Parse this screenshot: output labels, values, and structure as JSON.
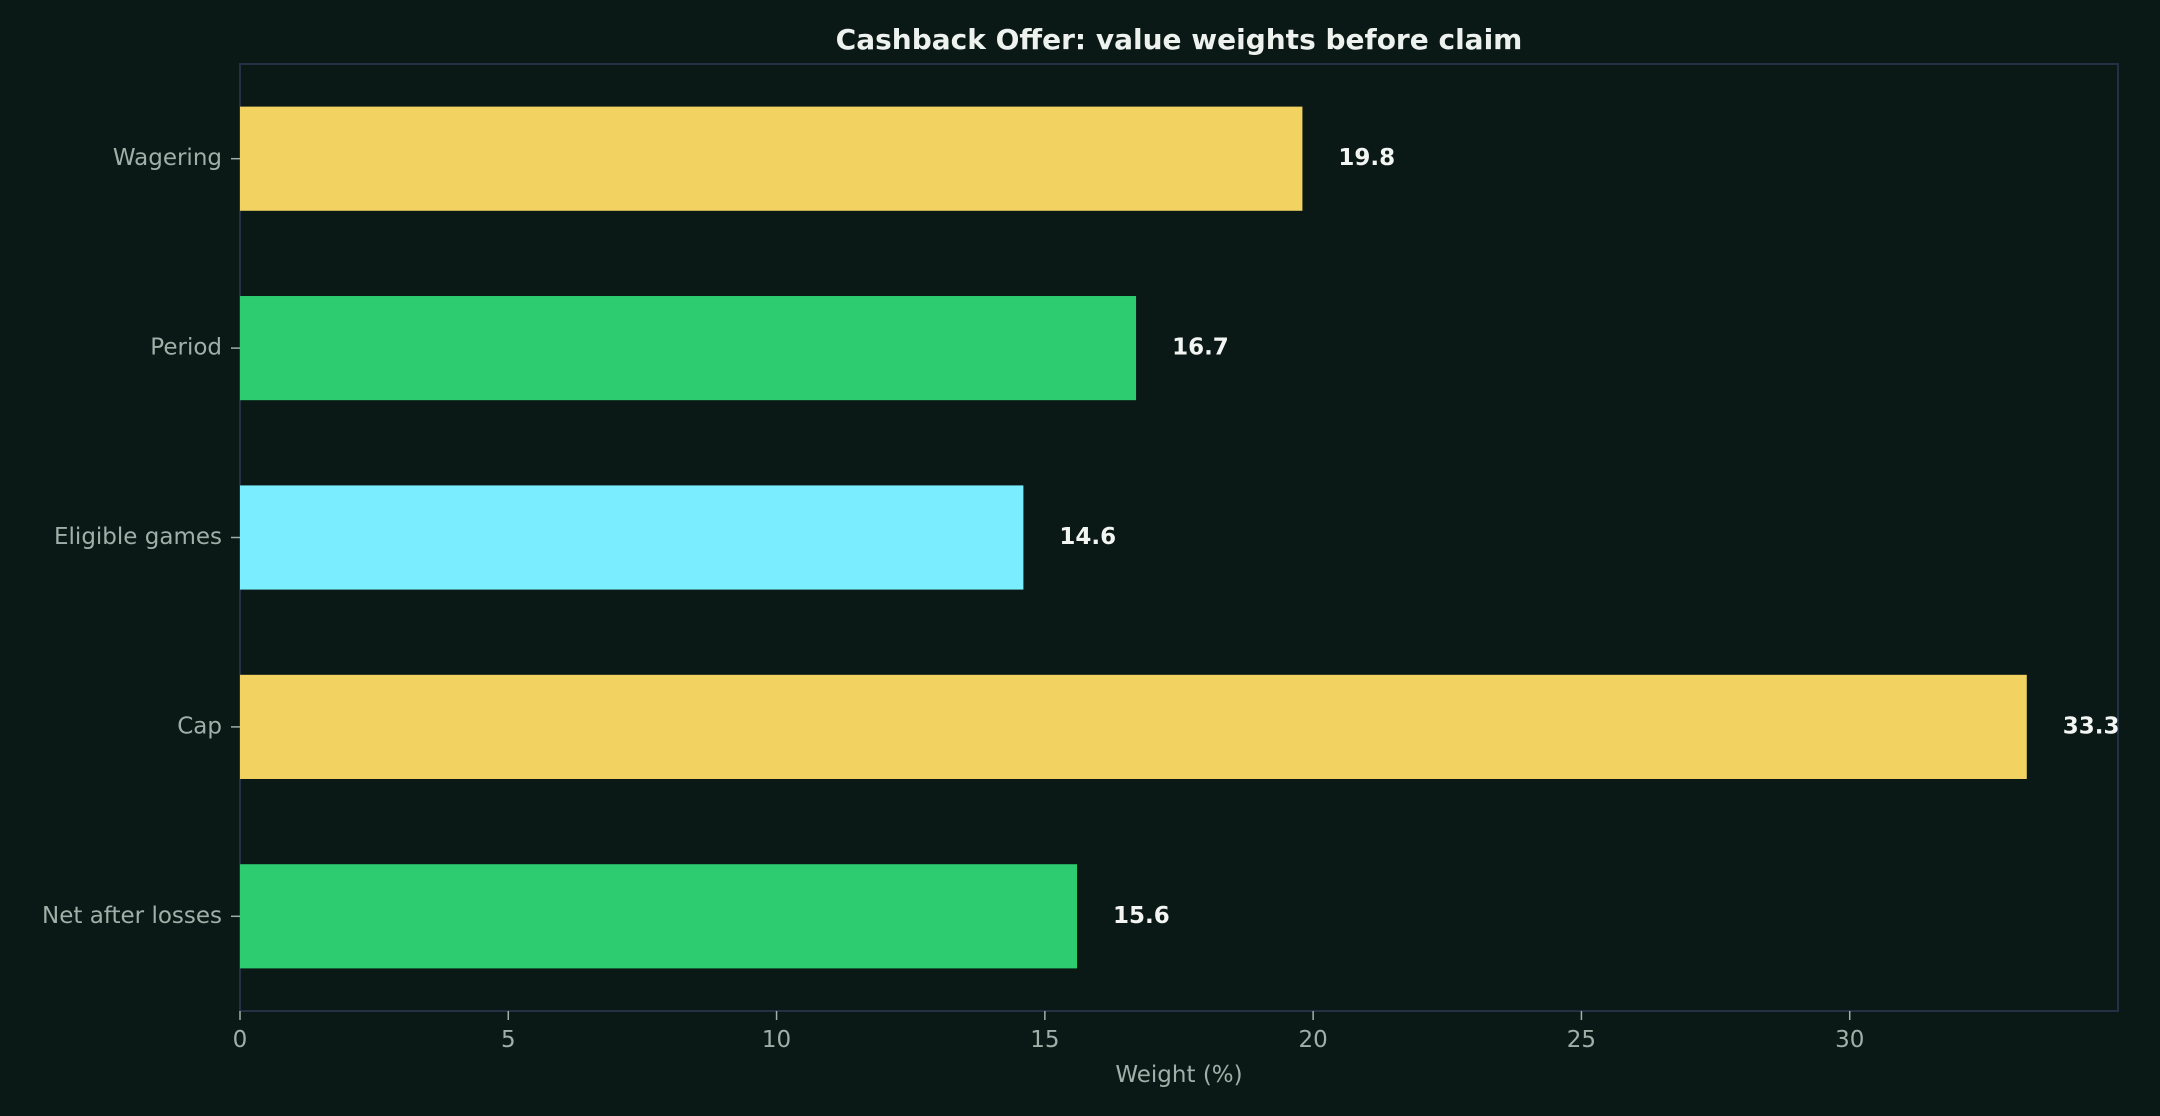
{
  "chart_data": {
    "type": "bar",
    "orientation": "horizontal",
    "title": "Cashback Offer: value weights before claim",
    "xlabel": "Weight (%)",
    "ylabel": "",
    "categories": [
      "Wagering",
      "Period",
      "Eligible games",
      "Cap",
      "Net after losses"
    ],
    "values": [
      19.8,
      16.7,
      14.6,
      33.3,
      15.6
    ],
    "value_labels": [
      "19.8",
      "16.7",
      "14.6",
      "33.3",
      "15.6"
    ],
    "colors": [
      "#f2d260",
      "#2ecc71",
      "#7aeeff",
      "#f2d260",
      "#2ecc71"
    ],
    "xlim": [
      0,
      35
    ],
    "xticks": [
      0,
      5,
      10,
      15,
      20,
      25,
      30
    ],
    "xtick_labels": [
      "0",
      "5",
      "10",
      "15",
      "20",
      "25",
      "30"
    ],
    "grid": false,
    "background": "#0b1916"
  }
}
